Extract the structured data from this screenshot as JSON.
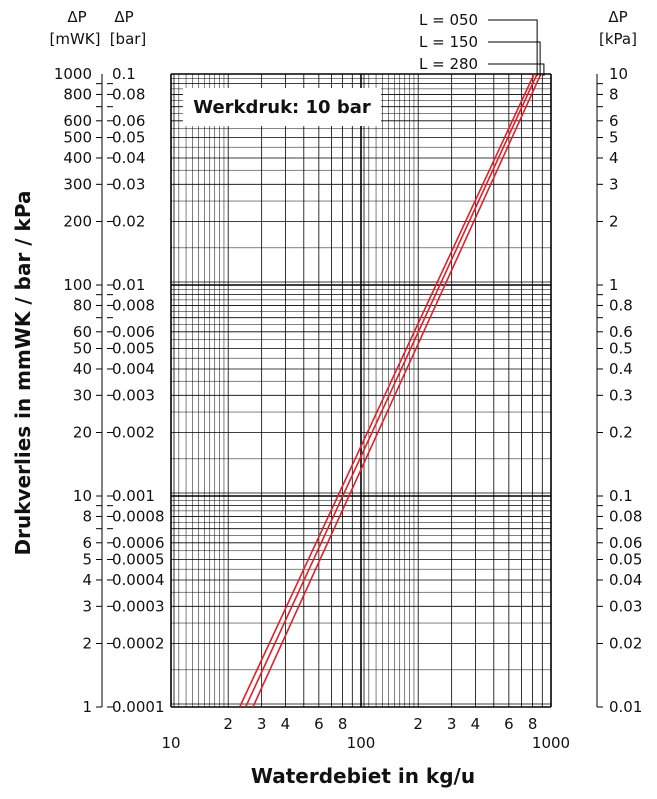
{
  "chart_data": {
    "type": "line",
    "x_scale": "log",
    "y_scale": "log",
    "xlim": [
      10,
      1000
    ],
    "ylim_mmwk": [
      1,
      1000
    ],
    "ylim_bar": [
      0.0001,
      0.1
    ],
    "ylim_kpa": [
      0.01,
      10
    ],
    "grid": true,
    "xlabel": "Waterdebiet in kg/u",
    "ylabel": "Drukverlies in mmWK / bar / kPa",
    "annotation": "Werkdruk: 10 bar",
    "headers": {
      "left_outer": [
        "ΔP",
        "[mWK]"
      ],
      "left_inner": [
        "ΔP",
        "[bar]"
      ],
      "right": [
        "ΔP",
        "[kPa]"
      ]
    },
    "x_ticks": [
      {
        "v": 10,
        "label": "10"
      },
      {
        "v": 20,
        "label": "2"
      },
      {
        "v": 30,
        "label": "3"
      },
      {
        "v": 40,
        "label": "4"
      },
      {
        "v": 60,
        "label": "6"
      },
      {
        "v": 80,
        "label": "8"
      },
      {
        "v": 100,
        "label": "100"
      },
      {
        "v": 200,
        "label": "2"
      },
      {
        "v": 300,
        "label": "3"
      },
      {
        "v": 400,
        "label": "4"
      },
      {
        "v": 600,
        "label": "6"
      },
      {
        "v": 800,
        "label": "8"
      },
      {
        "v": 1000,
        "label": "1000"
      }
    ],
    "y_ticks": [
      {
        "v": 1000,
        "mwk": "1000",
        "bar": "0.1",
        "kpa": "10"
      },
      {
        "v": 800,
        "mwk": "800",
        "bar": "0.08",
        "kpa": "8"
      },
      {
        "v": 600,
        "mwk": "600",
        "bar": "0.06",
        "kpa": "6"
      },
      {
        "v": 500,
        "mwk": "500",
        "bar": "0.05",
        "kpa": "5"
      },
      {
        "v": 400,
        "mwk": "400",
        "bar": "0.04",
        "kpa": "4"
      },
      {
        "v": 300,
        "mwk": "300",
        "bar": "0.03",
        "kpa": "3"
      },
      {
        "v": 200,
        "mwk": "200",
        "bar": "0.02",
        "kpa": "2"
      },
      {
        "v": 100,
        "mwk": "100",
        "bar": "0.01",
        "kpa": "1"
      },
      {
        "v": 80,
        "mwk": "80",
        "bar": "0.008",
        "kpa": "0.8"
      },
      {
        "v": 60,
        "mwk": "60",
        "bar": "0.006",
        "kpa": "0.6"
      },
      {
        "v": 50,
        "mwk": "50",
        "bar": "0.005",
        "kpa": "0.5"
      },
      {
        "v": 40,
        "mwk": "40",
        "bar": "0.004",
        "kpa": "0.4"
      },
      {
        "v": 30,
        "mwk": "30",
        "bar": "0.003",
        "kpa": "0.3"
      },
      {
        "v": 20,
        "mwk": "20",
        "bar": "0.002",
        "kpa": "0.2"
      },
      {
        "v": 10,
        "mwk": "10",
        "bar": "0.001",
        "kpa": "0.1"
      },
      {
        "v": 8,
        "mwk": "8",
        "bar": "0.0008",
        "kpa": "0.08"
      },
      {
        "v": 6,
        "mwk": "6",
        "bar": "0.0006",
        "kpa": "0.06"
      },
      {
        "v": 5,
        "mwk": "5",
        "bar": "0.0005",
        "kpa": "0.05"
      },
      {
        "v": 4,
        "mwk": "4",
        "bar": "0.0004",
        "kpa": "0.04"
      },
      {
        "v": 3,
        "mwk": "3",
        "bar": "0.0003",
        "kpa": "0.03"
      },
      {
        "v": 2,
        "mwk": "2",
        "bar": "0.0002",
        "kpa": "0.02"
      },
      {
        "v": 1,
        "mwk": "1",
        "bar": "0.0001",
        "kpa": "0.01"
      }
    ],
    "series": [
      {
        "name": "L = 050",
        "color": "#e0202a",
        "x": [
          23,
          815
        ],
        "y": [
          1,
          1000
        ]
      },
      {
        "name": "L = 150",
        "color": "#e0202a",
        "x": [
          24.7,
          845
        ],
        "y": [
          1,
          1000
        ]
      },
      {
        "name": "L = 280",
        "color": "#e0202a",
        "x": [
          27,
          885
        ],
        "y": [
          1,
          1000
        ]
      }
    ],
    "colors": {
      "line": "#e0202a",
      "grid": "#000000",
      "text": "#111111"
    }
  }
}
